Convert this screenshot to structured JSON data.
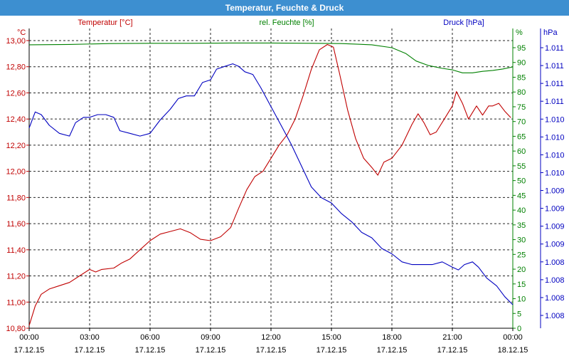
{
  "window": {
    "title": "Temperatur, Feuchte & Druck"
  },
  "colors": {
    "temperature": "#c00000",
    "humidity": "#008000",
    "pressure": "#0000c0",
    "title_bar": "#3d8fd0"
  },
  "chart_data": {
    "type": "line",
    "title": "Temperatur, Feuchte & Druck",
    "grid": true,
    "x_ticks": [
      {
        "time": "00:00",
        "date": "17.12.15"
      },
      {
        "time": "03:00",
        "date": "17.12.15"
      },
      {
        "time": "06:00",
        "date": "17.12.15"
      },
      {
        "time": "09:00",
        "date": "17.12.15"
      },
      {
        "time": "12:00",
        "date": "17.12.15"
      },
      {
        "time": "15:00",
        "date": "17.12.15"
      },
      {
        "time": "18:00",
        "date": "17.12.15"
      },
      {
        "time": "21:00",
        "date": "17.12.15"
      },
      {
        "time": "00:00",
        "date": "18.12.15"
      }
    ],
    "axes": {
      "temperature": {
        "label": "Temperatur [°C]",
        "unit": "°C",
        "position": "left",
        "range": [
          10.8,
          13.0
        ],
        "ticks": [
          "10,80",
          "11,00",
          "11,20",
          "11,40",
          "11,60",
          "11,80",
          "12,00",
          "12,20",
          "12,40",
          "12,60",
          "12,80",
          "13,00"
        ]
      },
      "humidity": {
        "label": "rel. Feuchte [%]",
        "unit": "%",
        "position": "right",
        "range": [
          0,
          97.5
        ],
        "ticks": [
          "0",
          "5",
          "10",
          "15",
          "20",
          "25",
          "30",
          "35",
          "40",
          "45",
          "50",
          "55",
          "60",
          "65",
          "70",
          "75",
          "80",
          "85",
          "90",
          "95"
        ]
      },
      "pressure": {
        "label": "Druck [hPa]",
        "unit": "hPa",
        "position": "right-outer",
        "ticks": [
          "1.008",
          "1.008",
          "1.008",
          "1.008",
          "1.009",
          "1.009",
          "1.009",
          "1.009",
          "1.010",
          "1.010",
          "1.010",
          "1.010",
          "1.011",
          "1.011",
          "1.011",
          "1.011"
        ]
      }
    },
    "series": [
      {
        "name": "Temperatur [°C]",
        "axis": "temperature",
        "points": [
          [
            0.0,
            10.82
          ],
          [
            0.3,
            10.97
          ],
          [
            0.6,
            11.06
          ],
          [
            1.0,
            11.1
          ],
          [
            1.4,
            11.12
          ],
          [
            2.0,
            11.15
          ],
          [
            2.5,
            11.2
          ],
          [
            3.0,
            11.25
          ],
          [
            3.3,
            11.23
          ],
          [
            3.6,
            11.25
          ],
          [
            4.2,
            11.26
          ],
          [
            4.6,
            11.3
          ],
          [
            5.0,
            11.33
          ],
          [
            5.5,
            11.4
          ],
          [
            6.0,
            11.47
          ],
          [
            6.5,
            11.52
          ],
          [
            7.0,
            11.54
          ],
          [
            7.5,
            11.56
          ],
          [
            8.0,
            11.53
          ],
          [
            8.5,
            11.48
          ],
          [
            9.0,
            11.47
          ],
          [
            9.5,
            11.5
          ],
          [
            10.0,
            11.57
          ],
          [
            10.4,
            11.72
          ],
          [
            10.8,
            11.86
          ],
          [
            11.2,
            11.96
          ],
          [
            11.6,
            12.0
          ],
          [
            12.0,
            12.1
          ],
          [
            12.4,
            12.2
          ],
          [
            12.8,
            12.28
          ],
          [
            13.2,
            12.4
          ],
          [
            13.6,
            12.58
          ],
          [
            14.0,
            12.78
          ],
          [
            14.4,
            12.93
          ],
          [
            14.8,
            12.97
          ],
          [
            15.1,
            12.95
          ],
          [
            15.4,
            12.75
          ],
          [
            15.8,
            12.47
          ],
          [
            16.2,
            12.25
          ],
          [
            16.6,
            12.1
          ],
          [
            17.0,
            12.03
          ],
          [
            17.3,
            11.97
          ],
          [
            17.6,
            12.07
          ],
          [
            18.0,
            12.1
          ],
          [
            18.5,
            12.2
          ],
          [
            19.0,
            12.36
          ],
          [
            19.3,
            12.44
          ],
          [
            19.6,
            12.37
          ],
          [
            19.9,
            12.28
          ],
          [
            20.2,
            12.3
          ],
          [
            20.6,
            12.4
          ],
          [
            21.0,
            12.5
          ],
          [
            21.2,
            12.61
          ],
          [
            21.5,
            12.52
          ],
          [
            21.8,
            12.4
          ],
          [
            22.2,
            12.5
          ],
          [
            22.5,
            12.43
          ],
          [
            22.8,
            12.5
          ],
          [
            23.0,
            12.5
          ],
          [
            23.3,
            12.52
          ],
          [
            23.6,
            12.46
          ],
          [
            23.9,
            12.41
          ]
        ]
      },
      {
        "name": "rel. Feuchte [%]",
        "axis": "humidity",
        "points": [
          [
            0.0,
            96.0
          ],
          [
            2.0,
            96.1
          ],
          [
            4.0,
            96.4
          ],
          [
            6.0,
            96.5
          ],
          [
            8.0,
            96.5
          ],
          [
            10.0,
            96.6
          ],
          [
            12.0,
            96.6
          ],
          [
            14.0,
            96.5
          ],
          [
            15.5,
            96.4
          ],
          [
            17.0,
            96.0
          ],
          [
            18.0,
            95.0
          ],
          [
            18.7,
            93.0
          ],
          [
            19.2,
            90.5
          ],
          [
            19.8,
            89.0
          ],
          [
            20.5,
            88.0
          ],
          [
            21.0,
            87.5
          ],
          [
            21.5,
            86.5
          ],
          [
            22.0,
            86.5
          ],
          [
            22.5,
            87.0
          ],
          [
            23.0,
            87.3
          ],
          [
            23.5,
            87.8
          ],
          [
            24.0,
            88.5
          ]
        ]
      },
      {
        "name": "Druck [hPa]",
        "axis": "pressure",
        "points": [
          [
            0.0,
            0.7
          ],
          [
            0.3,
            0.76
          ],
          [
            0.6,
            0.75
          ],
          [
            1.0,
            0.71
          ],
          [
            1.5,
            0.68
          ],
          [
            2.0,
            0.67
          ],
          [
            2.3,
            0.72
          ],
          [
            2.7,
            0.74
          ],
          [
            3.0,
            0.74
          ],
          [
            3.4,
            0.75
          ],
          [
            3.8,
            0.75
          ],
          [
            4.2,
            0.74
          ],
          [
            4.5,
            0.69
          ],
          [
            5.0,
            0.68
          ],
          [
            5.5,
            0.67
          ],
          [
            6.0,
            0.68
          ],
          [
            6.5,
            0.73
          ],
          [
            7.0,
            0.77
          ],
          [
            7.4,
            0.81
          ],
          [
            7.8,
            0.82
          ],
          [
            8.2,
            0.82
          ],
          [
            8.6,
            0.87
          ],
          [
            9.0,
            0.88
          ],
          [
            9.3,
            0.92
          ],
          [
            9.7,
            0.93
          ],
          [
            10.1,
            0.94
          ],
          [
            10.4,
            0.93
          ],
          [
            10.7,
            0.91
          ],
          [
            11.1,
            0.9
          ],
          [
            11.5,
            0.85
          ],
          [
            12.0,
            0.78
          ],
          [
            12.5,
            0.71
          ],
          [
            13.0,
            0.64
          ],
          [
            13.5,
            0.56
          ],
          [
            14.0,
            0.48
          ],
          [
            14.5,
            0.44
          ],
          [
            15.0,
            0.42
          ],
          [
            15.5,
            0.38
          ],
          [
            16.0,
            0.35
          ],
          [
            16.5,
            0.31
          ],
          [
            17.0,
            0.29
          ],
          [
            17.5,
            0.25
          ],
          [
            18.0,
            0.23
          ],
          [
            18.5,
            0.2
          ],
          [
            19.0,
            0.19
          ],
          [
            19.5,
            0.19
          ],
          [
            20.0,
            0.19
          ],
          [
            20.5,
            0.2
          ],
          [
            21.0,
            0.18
          ],
          [
            21.3,
            0.17
          ],
          [
            21.6,
            0.19
          ],
          [
            22.0,
            0.2
          ],
          [
            22.3,
            0.18
          ],
          [
            22.7,
            0.14
          ],
          [
            23.2,
            0.11
          ],
          [
            23.6,
            0.07
          ],
          [
            24.0,
            0.04
          ]
        ]
      }
    ]
  }
}
